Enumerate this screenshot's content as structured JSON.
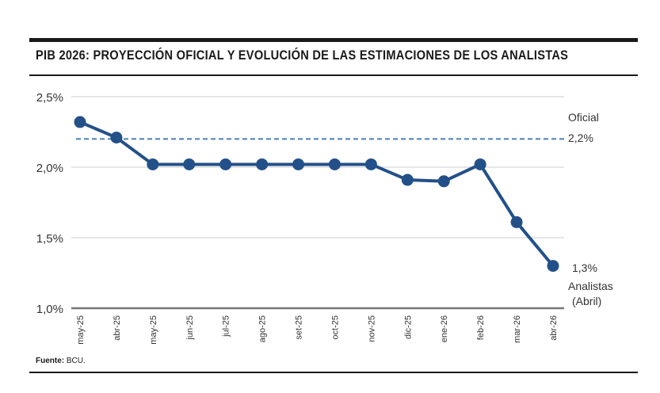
{
  "title": "PIB 2026: PROYECCIÓN OFICIAL Y EVOLUCIÓN DE LAS ESTIMACIONES DE LOS ANALISTAS",
  "source_label": "Fuente:",
  "source_text": "BCU.",
  "chart_data": {
    "type": "line",
    "categories": [
      "may-25",
      "abr-25",
      "may-25",
      "jun-25",
      "jul-25",
      "ago-25",
      "set-25",
      "oct-25",
      "nov-25",
      "dic-25",
      "ene-26",
      "feb-26",
      "mar-26",
      "abr-26"
    ],
    "series": [
      {
        "name": "Analistas",
        "values": [
          2.32,
          2.21,
          2.02,
          2.02,
          2.02,
          2.02,
          2.02,
          2.02,
          2.02,
          1.91,
          1.9,
          2.02,
          1.61,
          1.3
        ],
        "color": "#235089"
      }
    ],
    "reference_line": {
      "name": "Oficial",
      "value": 2.2,
      "label": "2,2%",
      "color": "#4a7fb5",
      "style": "dashed"
    },
    "last_value_label": "1,3%",
    "series_label_lines": [
      "Analistas",
      "(Abril)"
    ],
    "ylim": [
      1.0,
      2.5
    ],
    "yticks": [
      "1,0%",
      "1,5%",
      "2,0%",
      "2,5%"
    ],
    "ytick_values": [
      1.0,
      1.5,
      2.0,
      2.5
    ],
    "grid": true,
    "xlabel": "",
    "ylabel": ""
  }
}
